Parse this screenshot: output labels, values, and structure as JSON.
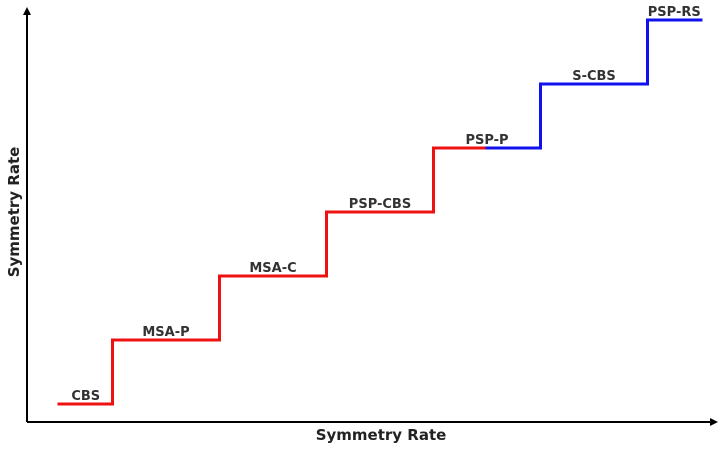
{
  "chart_data": {
    "type": "line",
    "subtype": "step",
    "title": "",
    "xlabel": "Symmetry Rate",
    "ylabel": "Symmetry Rate",
    "grid": false,
    "legend": "none",
    "xlim": [
      0,
      6.5
    ],
    "ylim": [
      0,
      6.3
    ],
    "steps": [
      {
        "label": "CBS",
        "level": 0,
        "x_start": 0.0,
        "x_end": 0.5,
        "color": "#ee1111"
      },
      {
        "label": "MSA-P",
        "level": 1,
        "x_start": 0.5,
        "x_end": 1.5,
        "color": "#ee1111"
      },
      {
        "label": "MSA-C",
        "level": 2,
        "x_start": 1.5,
        "x_end": 2.5,
        "color": "#ee1111"
      },
      {
        "label": "PSP-CBS",
        "level": 3,
        "x_start": 2.5,
        "x_end": 3.5,
        "color": "#ee1111"
      },
      {
        "label": "PSP-P",
        "level": 4,
        "x_start": 3.5,
        "x_end": 4.5,
        "color": "#ee1111",
        "color_after_x": 4.0,
        "color_after": "#1111ee"
      },
      {
        "label": "S-CBS",
        "level": 5,
        "x_start": 4.5,
        "x_end": 5.5,
        "color": "#1111ee"
      },
      {
        "label": "PSP-RS",
        "level": 6,
        "x_start": 5.5,
        "x_end": 6.0,
        "color": "#1111ee"
      }
    ]
  }
}
